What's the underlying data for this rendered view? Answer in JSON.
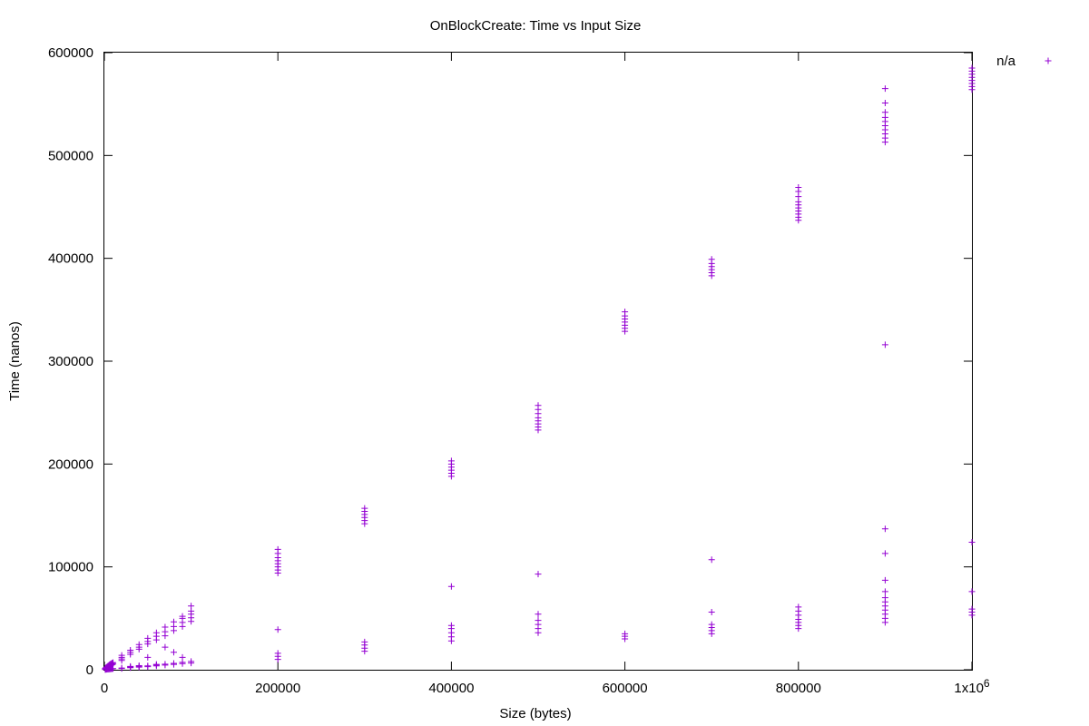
{
  "chart_data": {
    "type": "scatter",
    "title": "OnBlockCreate: Time vs Input Size",
    "xlabel": "Size (bytes)",
    "ylabel": "Time (nanos)",
    "xlim": [
      0,
      1000000
    ],
    "ylim": [
      0,
      600000
    ],
    "x_ticks": [
      0,
      200000,
      400000,
      600000,
      800000,
      1000000
    ],
    "x_tick_labels": [
      "0",
      "200000",
      "400000",
      "600000",
      "800000",
      "1x10"
    ],
    "x_tick_exponent": "6",
    "y_ticks": [
      0,
      100000,
      200000,
      300000,
      400000,
      500000,
      600000
    ],
    "y_tick_labels": [
      "0",
      "100000",
      "200000",
      "300000",
      "400000",
      "500000",
      "600000"
    ],
    "grid": false,
    "legend_position": "top-right",
    "marker": "+",
    "series": [
      {
        "name": "n/a",
        "color": "#9400d3",
        "points": [
          [
            1000,
            800
          ],
          [
            1000,
            1200
          ],
          [
            2000,
            1500
          ],
          [
            2000,
            2200
          ],
          [
            3000,
            2000
          ],
          [
            3000,
            2800
          ],
          [
            4000,
            2500
          ],
          [
            4000,
            3500
          ],
          [
            5000,
            3000
          ],
          [
            5000,
            4200
          ],
          [
            6000,
            3500
          ],
          [
            6000,
            5000
          ],
          [
            7000,
            4000
          ],
          [
            7000,
            5500
          ],
          [
            8000,
            4500
          ],
          [
            8000,
            6000
          ],
          [
            9000,
            5000
          ],
          [
            9000,
            6500
          ],
          [
            10000,
            5500
          ],
          [
            10000,
            7000
          ],
          [
            1000,
            200
          ],
          [
            2000,
            300
          ],
          [
            3000,
            400
          ],
          [
            4000,
            500
          ],
          [
            5000,
            600
          ],
          [
            6000,
            700
          ],
          [
            7000,
            800
          ],
          [
            8000,
            900
          ],
          [
            9000,
            1000
          ],
          [
            10000,
            1100
          ],
          [
            20000,
            9000
          ],
          [
            20000,
            10500
          ],
          [
            20000,
            12000
          ],
          [
            20000,
            14000
          ],
          [
            20000,
            1200
          ],
          [
            20000,
            1600
          ],
          [
            30000,
            15000
          ],
          [
            30000,
            17000
          ],
          [
            30000,
            19000
          ],
          [
            30000,
            2000
          ],
          [
            30000,
            2600
          ],
          [
            30000,
            3200
          ],
          [
            40000,
            20000
          ],
          [
            40000,
            22000
          ],
          [
            40000,
            24500
          ],
          [
            40000,
            2500
          ],
          [
            40000,
            3200
          ],
          [
            40000,
            4000
          ],
          [
            50000,
            25000
          ],
          [
            50000,
            27500
          ],
          [
            50000,
            30500
          ],
          [
            50000,
            3000
          ],
          [
            50000,
            3800
          ],
          [
            50000,
            12000
          ],
          [
            60000,
            29000
          ],
          [
            60000,
            32500
          ],
          [
            60000,
            36000
          ],
          [
            60000,
            3800
          ],
          [
            60000,
            4500
          ],
          [
            60000,
            5200
          ],
          [
            70000,
            33000
          ],
          [
            70000,
            37000
          ],
          [
            70000,
            41500
          ],
          [
            70000,
            4500
          ],
          [
            70000,
            5400
          ],
          [
            70000,
            22000
          ],
          [
            80000,
            38000
          ],
          [
            80000,
            42000
          ],
          [
            80000,
            46500
          ],
          [
            80000,
            5200
          ],
          [
            80000,
            6200
          ],
          [
            80000,
            17000
          ],
          [
            90000,
            42000
          ],
          [
            90000,
            46000
          ],
          [
            90000,
            50000
          ],
          [
            90000,
            52000
          ],
          [
            90000,
            6000
          ],
          [
            90000,
            7200
          ],
          [
            90000,
            12000
          ],
          [
            100000,
            47000
          ],
          [
            100000,
            50500
          ],
          [
            100000,
            54000
          ],
          [
            100000,
            57000
          ],
          [
            100000,
            62000
          ],
          [
            100000,
            6500
          ],
          [
            100000,
            8000
          ],
          [
            200000,
            94000
          ],
          [
            200000,
            97000
          ],
          [
            200000,
            100000
          ],
          [
            200000,
            103000
          ],
          [
            200000,
            106000
          ],
          [
            200000,
            109000
          ],
          [
            200000,
            113000
          ],
          [
            200000,
            117000
          ],
          [
            200000,
            10000
          ],
          [
            200000,
            13000
          ],
          [
            200000,
            16000
          ],
          [
            200000,
            39000
          ],
          [
            300000,
            142000
          ],
          [
            300000,
            145000
          ],
          [
            300000,
            148000
          ],
          [
            300000,
            151000
          ],
          [
            300000,
            154000
          ],
          [
            300000,
            157000
          ],
          [
            300000,
            18000
          ],
          [
            300000,
            21000
          ],
          [
            300000,
            24000
          ],
          [
            300000,
            27000
          ],
          [
            400000,
            188000
          ],
          [
            400000,
            191000
          ],
          [
            400000,
            194000
          ],
          [
            400000,
            197000
          ],
          [
            400000,
            200000
          ],
          [
            400000,
            203000
          ],
          [
            400000,
            28000
          ],
          [
            400000,
            32000
          ],
          [
            400000,
            36000
          ],
          [
            400000,
            40000
          ],
          [
            400000,
            43000
          ],
          [
            400000,
            81000
          ],
          [
            500000,
            233000
          ],
          [
            500000,
            236000
          ],
          [
            500000,
            239000
          ],
          [
            500000,
            242000
          ],
          [
            500000,
            245000
          ],
          [
            500000,
            249000
          ],
          [
            500000,
            253000
          ],
          [
            500000,
            257000
          ],
          [
            500000,
            36000
          ],
          [
            500000,
            40000
          ],
          [
            500000,
            44000
          ],
          [
            500000,
            48000
          ],
          [
            500000,
            54000
          ],
          [
            500000,
            93000
          ],
          [
            600000,
            329000
          ],
          [
            600000,
            332000
          ],
          [
            600000,
            335000
          ],
          [
            600000,
            338000
          ],
          [
            600000,
            341000
          ],
          [
            600000,
            344000
          ],
          [
            600000,
            348000
          ],
          [
            600000,
            30000
          ],
          [
            600000,
            32500
          ],
          [
            600000,
            35000
          ],
          [
            700000,
            383000
          ],
          [
            700000,
            386000
          ],
          [
            700000,
            389000
          ],
          [
            700000,
            392000
          ],
          [
            700000,
            395000
          ],
          [
            700000,
            399000
          ],
          [
            700000,
            35000
          ],
          [
            700000,
            38000
          ],
          [
            700000,
            41000
          ],
          [
            700000,
            44000
          ],
          [
            700000,
            56000
          ],
          [
            700000,
            107000
          ],
          [
            800000,
            437000
          ],
          [
            800000,
            440000
          ],
          [
            800000,
            443000
          ],
          [
            800000,
            446000
          ],
          [
            800000,
            449000
          ],
          [
            800000,
            452000
          ],
          [
            800000,
            455000
          ],
          [
            800000,
            460000
          ],
          [
            800000,
            465000
          ],
          [
            800000,
            469000
          ],
          [
            800000,
            40000
          ],
          [
            800000,
            43000
          ],
          [
            800000,
            46000
          ],
          [
            800000,
            49000
          ],
          [
            800000,
            53000
          ],
          [
            800000,
            57000
          ],
          [
            800000,
            61000
          ],
          [
            900000,
            513000
          ],
          [
            900000,
            517000
          ],
          [
            900000,
            521000
          ],
          [
            900000,
            525000
          ],
          [
            900000,
            529000
          ],
          [
            900000,
            533000
          ],
          [
            900000,
            537000
          ],
          [
            900000,
            542000
          ],
          [
            900000,
            551000
          ],
          [
            900000,
            565000
          ],
          [
            900000,
            316000
          ],
          [
            900000,
            46000
          ],
          [
            900000,
            50000
          ],
          [
            900000,
            54000
          ],
          [
            900000,
            58000
          ],
          [
            900000,
            62000
          ],
          [
            900000,
            66000
          ],
          [
            900000,
            70000
          ],
          [
            900000,
            76000
          ],
          [
            900000,
            87000
          ],
          [
            900000,
            113000
          ],
          [
            900000,
            137000
          ],
          [
            1000000,
            564000
          ],
          [
            1000000,
            567000
          ],
          [
            1000000,
            570000
          ],
          [
            1000000,
            573000
          ],
          [
            1000000,
            576000
          ],
          [
            1000000,
            579000
          ],
          [
            1000000,
            582000
          ],
          [
            1000000,
            585000
          ],
          [
            1000000,
            53000
          ],
          [
            1000000,
            56000
          ],
          [
            1000000,
            59000
          ],
          [
            1000000,
            76000
          ],
          [
            1000000,
            124000
          ]
        ]
      }
    ]
  }
}
